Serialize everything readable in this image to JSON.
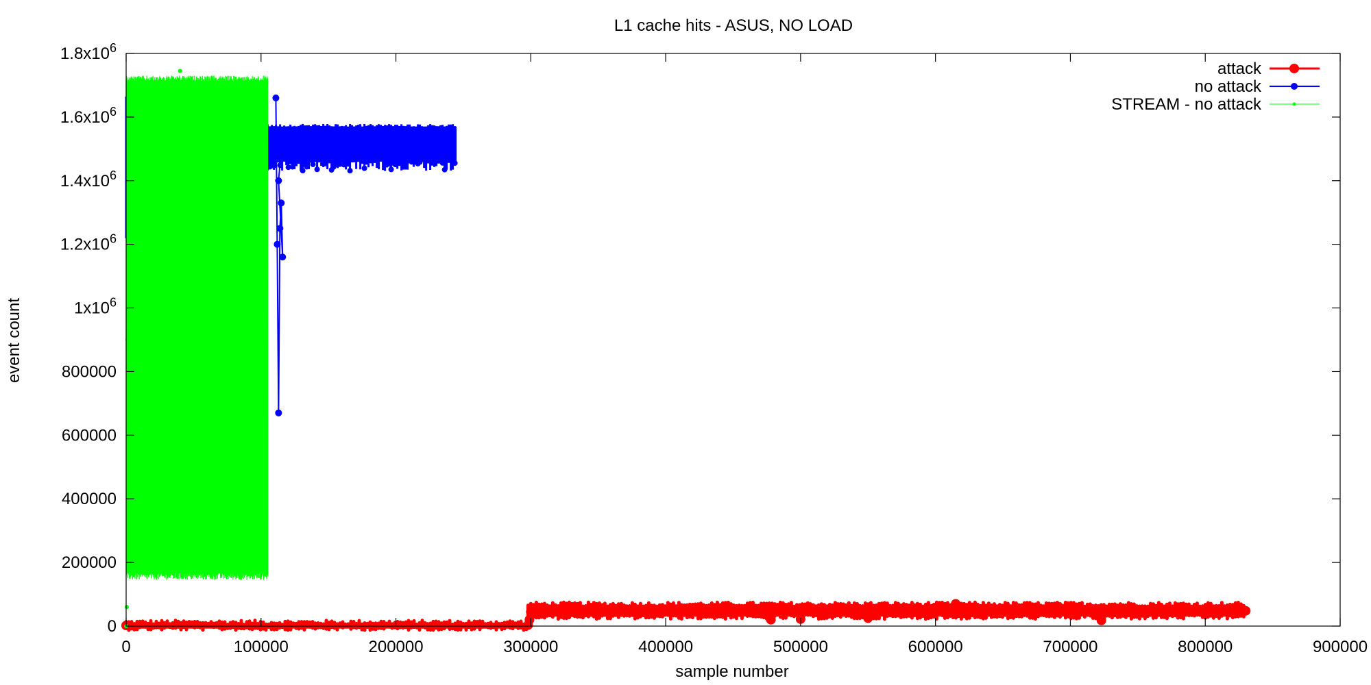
{
  "chart_data": {
    "type": "line",
    "title": "L1 cache hits - ASUS, NO LOAD",
    "xlabel": "sample number",
    "ylabel": "event count",
    "xlim": [
      0,
      900000
    ],
    "ylim": [
      0,
      1800000
    ],
    "grid": false,
    "legend_position": "top-right",
    "x_ticks": [
      {
        "value": 0,
        "label": "0"
      },
      {
        "value": 100000,
        "label": "100000"
      },
      {
        "value": 200000,
        "label": "200000"
      },
      {
        "value": 300000,
        "label": "300000"
      },
      {
        "value": 400000,
        "label": "400000"
      },
      {
        "value": 500000,
        "label": "500000"
      },
      {
        "value": 600000,
        "label": "600000"
      },
      {
        "value": 700000,
        "label": "700000"
      },
      {
        "value": 800000,
        "label": "800000"
      },
      {
        "value": 900000,
        "label": "900000"
      }
    ],
    "y_ticks": [
      {
        "value": 0,
        "label": "0",
        "base": "0",
        "exp": ""
      },
      {
        "value": 200000,
        "label": "200000",
        "base": "200000",
        "exp": ""
      },
      {
        "value": 400000,
        "label": "400000",
        "base": "400000",
        "exp": ""
      },
      {
        "value": 600000,
        "label": "600000",
        "base": "600000",
        "exp": ""
      },
      {
        "value": 800000,
        "label": "800000",
        "base": "800000",
        "exp": ""
      },
      {
        "value": 1000000,
        "label": "1x10^6",
        "base": "1x10",
        "exp": "6"
      },
      {
        "value": 1200000,
        "label": "1.2x10^6",
        "base": "1.2x10",
        "exp": "6"
      },
      {
        "value": 1400000,
        "label": "1.4x10^6",
        "base": "1.4x10",
        "exp": "6"
      },
      {
        "value": 1600000,
        "label": "1.6x10^6",
        "base": "1.6x10",
        "exp": "6"
      },
      {
        "value": 1800000,
        "label": "1.8x10^6",
        "base": "1.8x10",
        "exp": "6"
      }
    ],
    "series": [
      {
        "name": "attack",
        "color": "#ff0000",
        "marker": "large-circle",
        "bands": [
          {
            "x_start": 0,
            "x_end": 298000,
            "y_low": 0,
            "y_high": 5000
          },
          {
            "x_start": 298000,
            "x_end": 830000,
            "y_low": 35000,
            "y_high": 62000
          }
        ],
        "points": [
          [
            0,
            2000
          ],
          [
            298000,
            3000
          ],
          [
            299000,
            20000
          ],
          [
            300000,
            45000
          ],
          [
            478000,
            20000
          ],
          [
            500000,
            22000
          ],
          [
            550000,
            25000
          ],
          [
            615000,
            70000
          ],
          [
            723000,
            18000
          ],
          [
            830000,
            48000
          ]
        ]
      },
      {
        "name": "no attack",
        "color": "#0000ff",
        "marker": "circle",
        "bands": [
          {
            "x_start": 0,
            "x_end": 105000,
            "y_low": 1220000,
            "y_high": 1660000
          },
          {
            "x_start": 105000,
            "x_end": 245000,
            "y_low": 1460000,
            "y_high": 1570000
          }
        ],
        "points": [
          [
            111000,
            1660000
          ],
          [
            112000,
            1200000
          ],
          [
            113000,
            670000
          ],
          [
            114000,
            1250000
          ],
          [
            115000,
            1330000
          ],
          [
            116000,
            1160000
          ],
          [
            113000,
            1400000
          ],
          [
            115000,
            1500000
          ]
        ]
      },
      {
        "name": "STREAM - no attack",
        "color": "#00ff00",
        "marker": "dot",
        "bands": [
          {
            "x_start": 0,
            "x_end": 105000,
            "y_low": 145000,
            "y_high": 1730000
          }
        ],
        "points": [
          [
            0,
            0
          ],
          [
            500,
            60000
          ],
          [
            1000,
            900000
          ],
          [
            40000,
            1745000
          ],
          [
            103000,
            660000
          ],
          [
            104000,
            170000
          ]
        ]
      }
    ]
  }
}
